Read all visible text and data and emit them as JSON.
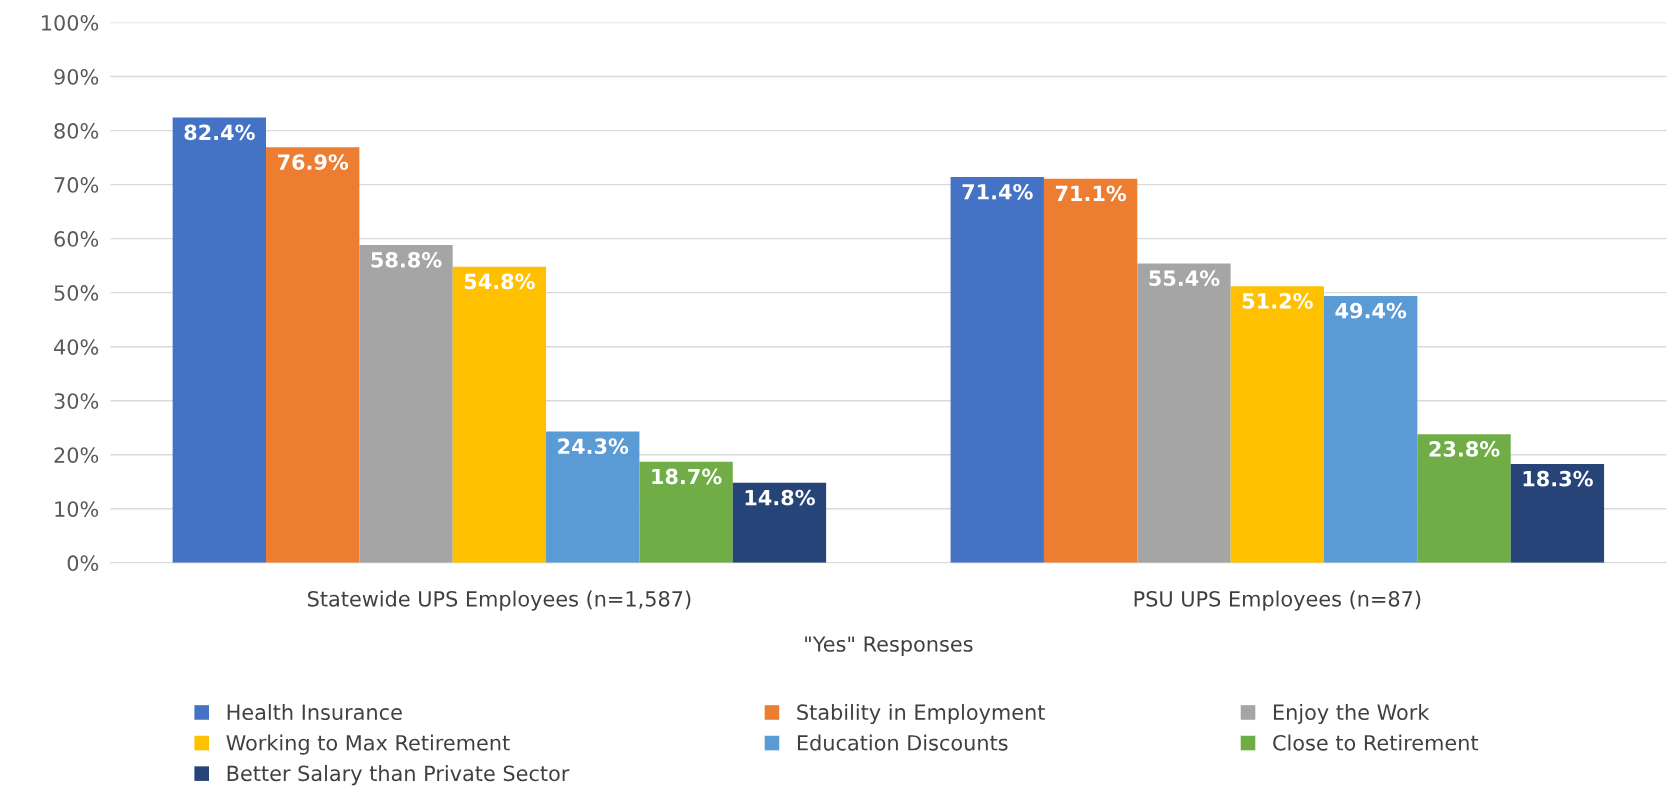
{
  "chart_data": {
    "type": "bar",
    "xlabel": "\"Yes\" Responses",
    "categories": [
      "Statewide UPS Employees (n=1,587)",
      "PSU UPS Employees (n=87)"
    ],
    "series": [
      {
        "name": "Health Insurance",
        "color": "#4472c4",
        "values": [
          82.4,
          71.4
        ],
        "value_labels": [
          "82.4%",
          "71.4%"
        ]
      },
      {
        "name": "Stability in Employment",
        "color": "#ed7d31",
        "values": [
          76.9,
          71.1
        ],
        "value_labels": [
          "76.9%",
          "71.1%"
        ]
      },
      {
        "name": "Enjoy the Work",
        "color": "#a5a5a5",
        "values": [
          58.8,
          55.4
        ],
        "value_labels": [
          "58.8%",
          "55.4%"
        ]
      },
      {
        "name": "Working to Max Retirement",
        "color": "#ffc000",
        "values": [
          54.8,
          51.2
        ],
        "value_labels": [
          "54.8%",
          "51.2%"
        ]
      },
      {
        "name": "Education Discounts",
        "color": "#5b9bd5",
        "values": [
          24.3,
          49.4
        ],
        "value_labels": [
          "24.3%",
          "49.4%"
        ]
      },
      {
        "name": "Close to Retirement",
        "color": "#70ad47",
        "values": [
          18.7,
          23.8
        ],
        "value_labels": [
          "18.7%",
          "23.8%"
        ]
      },
      {
        "name": "Better Salary than Private Sector",
        "color": "#264478",
        "values": [
          14.8,
          18.3
        ],
        "value_labels": [
          "14.8%",
          "18.3%"
        ]
      }
    ],
    "ylim": [
      0,
      100
    ],
    "yticks": [
      {
        "value": 0,
        "label": "0%"
      },
      {
        "value": 10,
        "label": "10%"
      },
      {
        "value": 20,
        "label": "20%"
      },
      {
        "value": 30,
        "label": "30%"
      },
      {
        "value": 40,
        "label": "40%"
      },
      {
        "value": 50,
        "label": "50%"
      },
      {
        "value": 60,
        "label": "60%"
      },
      {
        "value": 70,
        "label": "70%"
      },
      {
        "value": 80,
        "label": "80%"
      },
      {
        "value": 90,
        "label": "90%"
      },
      {
        "value": 100,
        "label": "100%"
      }
    ],
    "grid": "y",
    "legend": "bottom"
  }
}
